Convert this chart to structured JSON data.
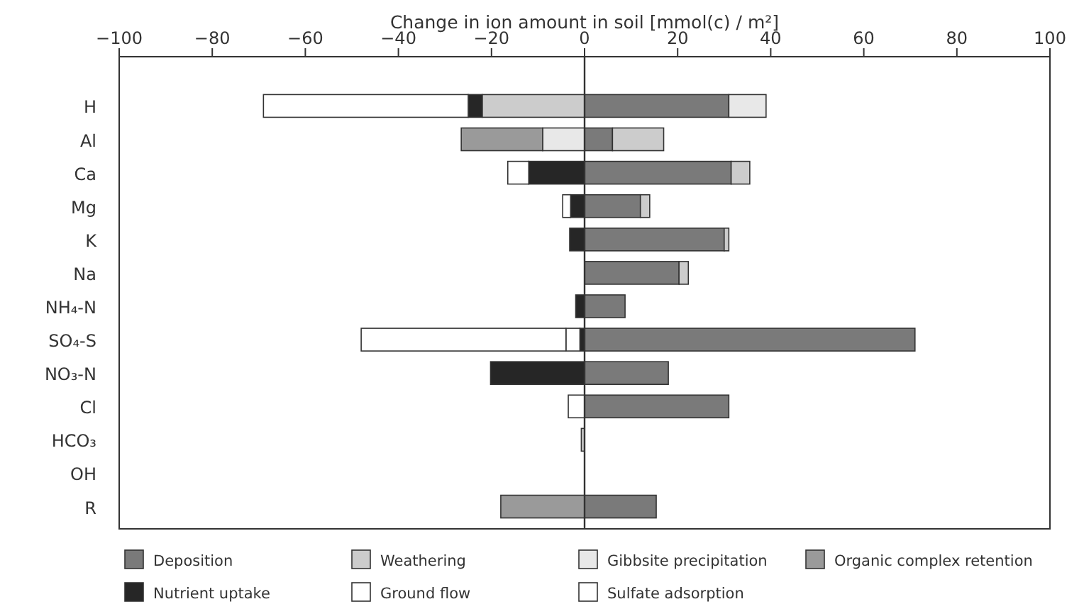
{
  "chart_data": {
    "type": "bar",
    "orientation": "horizontal",
    "stacked": true,
    "xlabel": "Change in ion amount in soil  [mmol(c) / m²]",
    "categories": [
      "H",
      "Al",
      "Ca",
      "Mg",
      "K",
      "Na",
      "NH₄-N",
      "SO₄-S",
      "NO₃-N",
      "Cl",
      "HCO₃",
      "OH",
      "R"
    ],
    "series": [
      {
        "name": "Deposition",
        "color": "#7a7a7a",
        "values": [
          31,
          6,
          31.5,
          12,
          30,
          20.3,
          8.7,
          71,
          18,
          31,
          null,
          null,
          15.4
        ]
      },
      {
        "name": "Weathering",
        "color": "#cccccc",
        "values": [
          -22,
          11,
          4,
          2,
          1,
          2,
          null,
          null,
          null,
          null,
          -0.7,
          null,
          null
        ]
      },
      {
        "name": "Gibbsite precipitation",
        "color": "#e8e8e8",
        "values": [
          8,
          -9,
          null,
          null,
          null,
          null,
          null,
          null,
          null,
          null,
          null,
          null,
          null
        ]
      },
      {
        "name": "Organic complex retention",
        "color": "#9a9a9a",
        "values": [
          null,
          -17.5,
          null,
          null,
          null,
          null,
          null,
          null,
          null,
          null,
          null,
          null,
          -18
        ]
      },
      {
        "name": "Nutrient uptake",
        "color": "#262626",
        "values": [
          -3,
          null,
          -12,
          -3,
          -3.2,
          null,
          -1.9,
          -1,
          -20.2,
          null,
          null,
          null,
          null
        ]
      },
      {
        "name": "Ground flow",
        "color": "#ffffff",
        "values": [
          null,
          null,
          -4.5,
          -1.7,
          null,
          null,
          null,
          -3,
          null,
          -3.5,
          null,
          null,
          null
        ]
      },
      {
        "name": "Sulfate adsorption",
        "color": "#ffffff",
        "values": [
          -44,
          null,
          null,
          null,
          null,
          null,
          null,
          -44,
          null,
          null,
          null,
          null,
          null
        ]
      }
    ],
    "xlim": [
      -100,
      100
    ],
    "xticks": [
      -100,
      -80,
      -60,
      -40,
      -20,
      0,
      20,
      40,
      60,
      80,
      100
    ],
    "ref_lines": [
      {
        "axis": "x",
        "value": 0
      }
    ],
    "legend": "bottom",
    "grid": false
  }
}
